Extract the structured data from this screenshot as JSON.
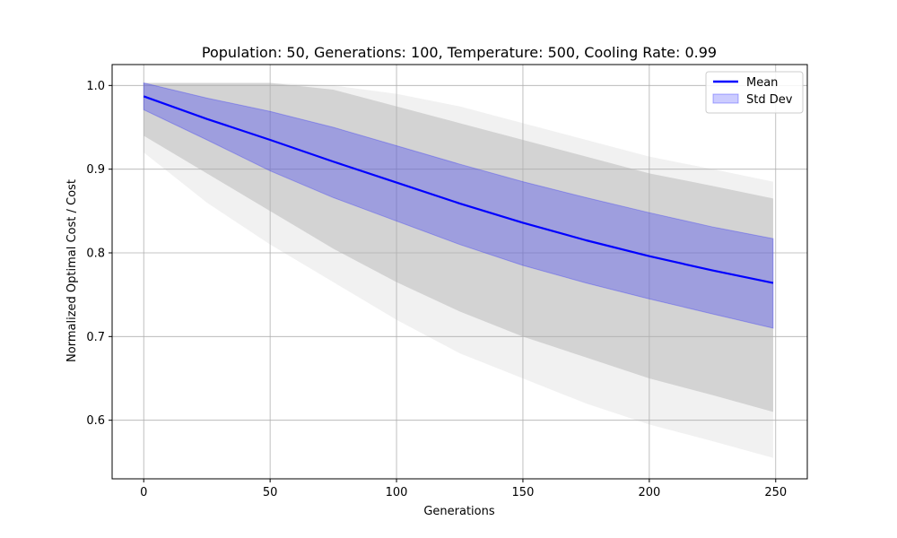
{
  "chart_data": {
    "type": "line",
    "title": "Population: 50, Generations: 100, Temperature: 500, Cooling Rate: 0.99",
    "xlabel": "Generations",
    "ylabel": "Normalized Optimal Cost / Cost",
    "xlim": [
      -12.5,
      262.5
    ],
    "ylim": [
      0.53,
      1.025
    ],
    "xticks": [
      0,
      50,
      100,
      150,
      200,
      250
    ],
    "yticks": [
      0.6,
      0.7,
      0.8,
      0.9,
      1.0
    ],
    "xtick_labels": [
      "0",
      "50",
      "100",
      "150",
      "200",
      "250"
    ],
    "ytick_labels": [
      "0.6",
      "0.7",
      "0.8",
      "0.9",
      "1.0"
    ],
    "grid": true,
    "legend_position": "top-right",
    "series": [
      {
        "name": "Mean",
        "kind": "line",
        "color": "#0000ff",
        "x": [
          0,
          25,
          50,
          75,
          100,
          125,
          150,
          175,
          200,
          225,
          249
        ],
        "y": [
          0.987,
          0.96,
          0.935,
          0.909,
          0.884,
          0.859,
          0.836,
          0.815,
          0.796,
          0.779,
          0.764
        ]
      },
      {
        "name": "Std Dev",
        "kind": "band",
        "color": "#0000ff",
        "x": [
          0,
          25,
          50,
          75,
          100,
          125,
          150,
          175,
          200,
          225,
          249
        ],
        "lower": [
          0.971,
          0.935,
          0.898,
          0.866,
          0.838,
          0.81,
          0.785,
          0.764,
          0.745,
          0.727,
          0.71
        ],
        "upper": [
          1.003,
          0.985,
          0.969,
          0.95,
          0.928,
          0.906,
          0.885,
          0.866,
          0.848,
          0.831,
          0.817
        ]
      }
    ],
    "individual_runs_envelope": {
      "color": "#c8c8c8",
      "x": [
        0,
        25,
        50,
        75,
        100,
        125,
        150,
        175,
        200,
        225,
        249
      ],
      "min": [
        0.94,
        0.895,
        0.85,
        0.805,
        0.765,
        0.73,
        0.7,
        0.675,
        0.65,
        0.63,
        0.61
      ],
      "max": [
        1.003,
        1.003,
        1.003,
        0.995,
        0.975,
        0.955,
        0.935,
        0.915,
        0.895,
        0.88,
        0.865
      ],
      "faint_min": [
        0.92,
        0.86,
        0.81,
        0.765,
        0.72,
        0.68,
        0.65,
        0.62,
        0.595,
        0.575,
        0.555
      ],
      "faint_max": [
        1.003,
        1.003,
        1.003,
        1.0,
        0.99,
        0.975,
        0.955,
        0.935,
        0.915,
        0.9,
        0.885
      ]
    }
  }
}
